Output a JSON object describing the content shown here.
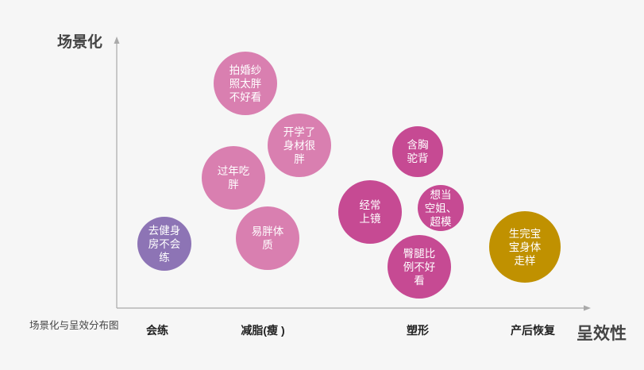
{
  "title": "场景化与呈效分布图",
  "y_axis_label": "场景化",
  "x_axis_label": "呈效性",
  "categories": [
    "会练",
    "减脂(瘦 )",
    "塑形",
    "产后恢复"
  ],
  "colors": {
    "light_pink": "#d97fb0",
    "magenta": "#c64a93",
    "purple": "#8d74b5",
    "gold": "#c09100",
    "axis": "#aaaaaa"
  },
  "bubbles": [
    {
      "label": "拍婚纱\n照太胖\n不好看",
      "color": "light_pink"
    },
    {
      "label": "开学了\n身材很\n胖",
      "color": "light_pink"
    },
    {
      "label": "过年吃\n胖",
      "color": "light_pink"
    },
    {
      "label": "易胖体\n质",
      "color": "light_pink"
    },
    {
      "label": "去健身\n房不会\n练",
      "color": "purple"
    },
    {
      "label": "含胸\n驼背",
      "color": "magenta"
    },
    {
      "label": "经常\n上镜",
      "color": "magenta"
    },
    {
      "label": "想当\n空姐、\n超模",
      "color": "magenta"
    },
    {
      "label": "臀腿比\n例不好\n看",
      "color": "magenta"
    },
    {
      "label": "生完宝\n宝身体\n走样",
      "color": "gold"
    }
  ]
}
